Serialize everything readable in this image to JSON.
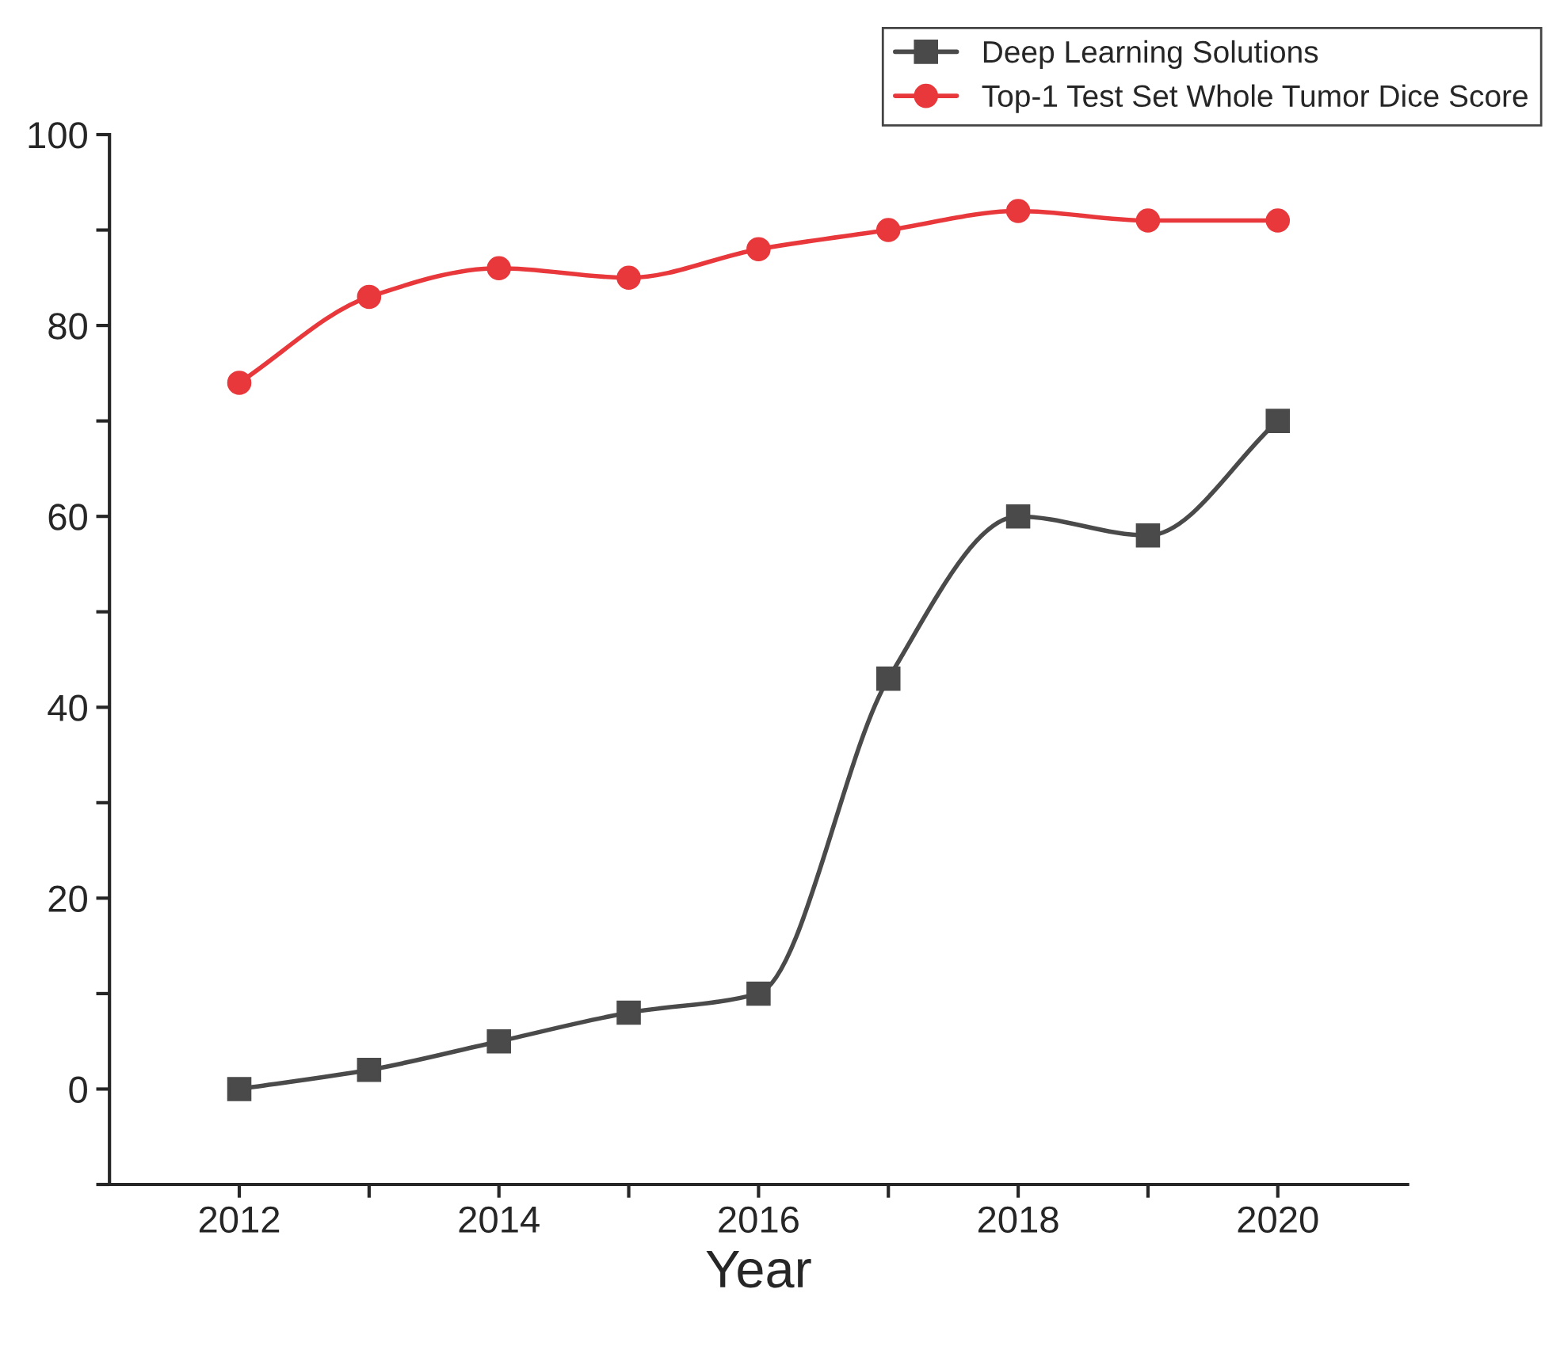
{
  "chart_data": {
    "type": "line",
    "xlabel": "Year",
    "x": [
      2012,
      2013,
      2014,
      2015,
      2016,
      2017,
      2018,
      2019,
      2020
    ],
    "series": [
      {
        "name": "Deep Learning Solutions",
        "color": "#4a4a4a",
        "marker": "square",
        "values": [
          0,
          2,
          5,
          8,
          10,
          43,
          60,
          58,
          70
        ]
      },
      {
        "name": "Top-1 Test Set Whole Tumor Dice Score",
        "color": "#e8383b",
        "marker": "circle",
        "values": [
          74,
          83,
          86,
          85,
          88,
          90,
          92,
          91,
          91
        ]
      }
    ],
    "xlim": [
      2011,
      2021
    ],
    "xticks": [
      2012,
      {
        "value": 2013,
        "label": null
      },
      2014,
      {
        "value": 2015,
        "label": null
      },
      2016,
      {
        "value": 2017,
        "label": null
      },
      2018,
      {
        "value": 2019,
        "label": null
      },
      2020
    ],
    "ylim": [
      -10,
      100
    ],
    "yticks": [
      {
        "value": -10,
        "label": null
      },
      0,
      {
        "value": 10,
        "label": null
      },
      20,
      {
        "value": 30,
        "label": null
      },
      40,
      {
        "value": 50,
        "label": null
      },
      60,
      {
        "value": 70,
        "label": null
      },
      80,
      {
        "value": 90,
        "label": null
      },
      100
    ],
    "grid": false,
    "legend": "top right",
    "line_style": "solid"
  }
}
